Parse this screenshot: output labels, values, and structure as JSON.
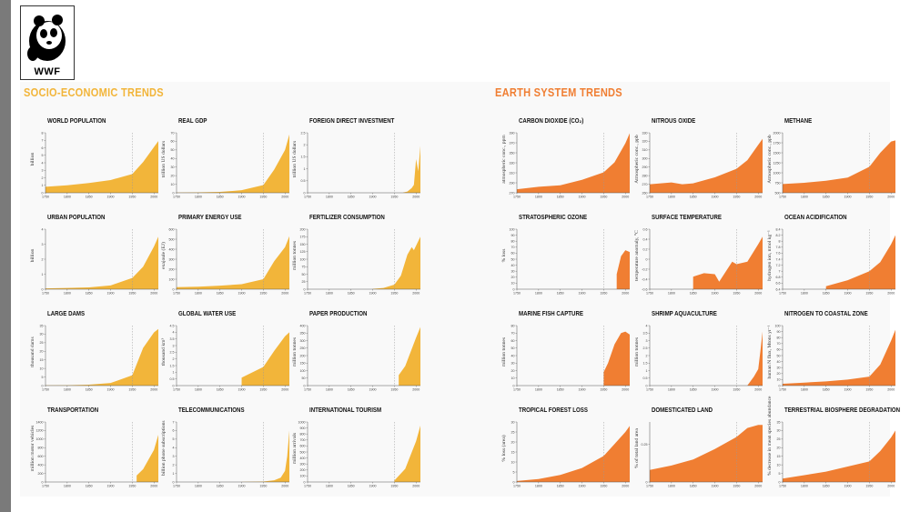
{
  "logo": {
    "text": "WWF"
  },
  "sections": [
    {
      "title": "SOCIO-ECONOMIC TRENDS",
      "color": "#f2b53a"
    },
    {
      "title": "EARTH SYSTEM TRENDS",
      "color": "#f07e32"
    }
  ],
  "chart_data": [
    {
      "type": "area",
      "title": "WORLD POPULATION",
      "ylabel": "billion",
      "ylim": [
        0,
        8
      ],
      "yticks": [
        0,
        1,
        2,
        3,
        4,
        5,
        6,
        7,
        8
      ],
      "xlim": [
        1750,
        2010
      ],
      "xticks": [
        1750,
        1800,
        1850,
        1900,
        1950,
        2000
      ],
      "refline": 1950,
      "x": [
        1750,
        1800,
        1850,
        1900,
        1950,
        1975,
        2000,
        2010
      ],
      "y": [
        0.8,
        1.0,
        1.3,
        1.7,
        2.5,
        4.1,
        6.1,
        6.9
      ]
    },
    {
      "type": "area",
      "title": "REAL GDP",
      "ylabel": "trillion US dollars",
      "ylim": [
        0,
        70
      ],
      "yticks": [
        0,
        10,
        20,
        30,
        40,
        50,
        60,
        70
      ],
      "xlim": [
        1750,
        2010
      ],
      "xticks": [
        1750,
        1800,
        1850,
        1900,
        1950,
        2000
      ],
      "refline": 1950,
      "x": [
        1750,
        1800,
        1850,
        1900,
        1950,
        1975,
        2000,
        2010
      ],
      "y": [
        0.3,
        0.5,
        1,
        3,
        9,
        27,
        50,
        68
      ]
    },
    {
      "type": "area",
      "title": "FOREIGN DIRECT INVESTMENT",
      "ylabel": "trillion US dollars",
      "ylim": [
        0,
        2.5
      ],
      "yticks": [
        0,
        0.5,
        1,
        1.5,
        2,
        2.5
      ],
      "xlim": [
        1750,
        2010
      ],
      "xticks": [
        1750,
        1800,
        1850,
        1900,
        1950,
        2000
      ],
      "refline": 1950,
      "x": [
        1970,
        1980,
        1990,
        1995,
        2000,
        2005,
        2010
      ],
      "y": [
        0.01,
        0.05,
        0.2,
        0.33,
        1.4,
        0.9,
        1.95
      ]
    },
    {
      "type": "area",
      "title": "URBAN POPULATION",
      "ylabel": "billion",
      "ylim": [
        0,
        4
      ],
      "yticks": [
        0,
        1,
        2,
        3,
        4
      ],
      "xlim": [
        1750,
        2010
      ],
      "xticks": [
        1750,
        1800,
        1850,
        1900,
        1950,
        2000
      ],
      "refline": 1950,
      "x": [
        1750,
        1800,
        1850,
        1900,
        1950,
        1975,
        2000,
        2010
      ],
      "y": [
        0.05,
        0.08,
        0.12,
        0.25,
        0.75,
        1.5,
        2.85,
        3.5
      ]
    },
    {
      "type": "area",
      "title": "PRIMARY ENERGY USE",
      "ylabel": "exajoule (EJ)",
      "ylim": [
        0,
        600
      ],
      "yticks": [
        0,
        100,
        200,
        300,
        400,
        500,
        600
      ],
      "xlim": [
        1750,
        2010
      ],
      "xticks": [
        1750,
        1800,
        1850,
        1900,
        1950,
        2000
      ],
      "refline": 1950,
      "x": [
        1750,
        1800,
        1850,
        1900,
        1950,
        1975,
        2000,
        2010
      ],
      "y": [
        20,
        25,
        35,
        50,
        100,
        280,
        420,
        530
      ]
    },
    {
      "type": "area",
      "title": "FERTILIZER CONSUMPTION",
      "ylabel": "million tonnes",
      "ylim": [
        0,
        200
      ],
      "yticks": [
        0,
        25,
        50,
        75,
        100,
        125,
        150,
        175,
        200
      ],
      "xlim": [
        1750,
        2010
      ],
      "xticks": [
        1750,
        1800,
        1850,
        1900,
        1950,
        2000
      ],
      "refline": 1950,
      "x": [
        1900,
        1925,
        1950,
        1965,
        1980,
        1990,
        1995,
        2000,
        2010
      ],
      "y": [
        1,
        4,
        15,
        45,
        115,
        140,
        130,
        145,
        175
      ]
    },
    {
      "type": "area",
      "title": "LARGE DAMS",
      "ylabel": "thousand dams",
      "ylim": [
        0,
        35
      ],
      "yticks": [
        0,
        5,
        10,
        15,
        20,
        25,
        30,
        35
      ],
      "xlim": [
        1750,
        2010
      ],
      "xticks": [
        1750,
        1800,
        1850,
        1900,
        1950,
        2000
      ],
      "refline": 1950,
      "x": [
        1750,
        1800,
        1850,
        1900,
        1950,
        1975,
        2000,
        2010
      ],
      "y": [
        0.1,
        0.2,
        0.5,
        1.5,
        6,
        22,
        31,
        33
      ]
    },
    {
      "type": "area",
      "title": "GLOBAL WATER USE",
      "ylabel": "thousand km³",
      "ylim": [
        0,
        4.5
      ],
      "yticks": [
        0,
        0.5,
        1,
        1.5,
        2,
        2.5,
        3,
        3.5,
        4,
        4.5
      ],
      "xlim": [
        1750,
        2010
      ],
      "xticks": [
        1750,
        1800,
        1850,
        1900,
        1950,
        2000
      ],
      "refline": 1950,
      "x": [
        1900,
        1950,
        1975,
        2000,
        2010
      ],
      "y": [
        0.6,
        1.4,
        2.6,
        3.7,
        4.0
      ]
    },
    {
      "type": "area",
      "title": "PAPER PRODUCTION",
      "ylabel": "million tonnes",
      "ylim": [
        0,
        400
      ],
      "yticks": [
        0,
        50,
        100,
        150,
        200,
        250,
        300,
        350,
        400
      ],
      "xlim": [
        1750,
        2010
      ],
      "xticks": [
        1750,
        1800,
        1850,
        1900,
        1950,
        2000
      ],
      "refline": 1950,
      "x": [
        1960,
        1975,
        2000,
        2010
      ],
      "y": [
        70,
        130,
        320,
        390
      ]
    },
    {
      "type": "area",
      "title": "TRANSPORTATION",
      "ylabel": "million motor vehicles",
      "ylim": [
        0,
        1400
      ],
      "yticks": [
        0,
        200,
        400,
        600,
        800,
        1000,
        1200,
        1400
      ],
      "xlim": [
        1750,
        2010
      ],
      "xticks": [
        1750,
        1800,
        1850,
        1900,
        1950,
        2000
      ],
      "refline": 1950,
      "x": [
        1960,
        1975,
        2000,
        2010
      ],
      "y": [
        150,
        300,
        750,
        1100
      ]
    },
    {
      "type": "area",
      "title": "TELECOMMUNICATIONS",
      "ylabel": "billion phone subscriptions",
      "ylim": [
        0,
        7
      ],
      "yticks": [
        0,
        1,
        2,
        3,
        4,
        5,
        6,
        7
      ],
      "xlim": [
        1750,
        2010
      ],
      "xticks": [
        1750,
        1800,
        1850,
        1900,
        1950,
        2000
      ],
      "refline": 1950,
      "x": [
        1900,
        1950,
        1975,
        1990,
        2000,
        2005,
        2010
      ],
      "y": [
        0.01,
        0.05,
        0.2,
        0.5,
        1.3,
        3,
        6
      ]
    },
    {
      "type": "area",
      "title": "INTERNATIONAL TOURISM",
      "ylabel": "million arrivals",
      "ylim": [
        0,
        1000
      ],
      "yticks": [
        0,
        100,
        200,
        300,
        400,
        500,
        600,
        700,
        800,
        900,
        1000
      ],
      "xlim": [
        1750,
        2010
      ],
      "xticks": [
        1750,
        1800,
        1850,
        1900,
        1950,
        2000
      ],
      "refline": 1950,
      "x": [
        1950,
        1975,
        2000,
        2010
      ],
      "y": [
        25,
        220,
        680,
        940
      ]
    },
    {
      "type": "area",
      "title": "CARBON DIOXIDE (CO₂)",
      "ylabel": "atmospheric conc., ppm",
      "ylim": [
        270,
        390
      ],
      "yticks": [
        270,
        290,
        310,
        330,
        350,
        370,
        390
      ],
      "xlim": [
        1750,
        2010
      ],
      "xticks": [
        1750,
        1800,
        1850,
        1900,
        1950,
        2000
      ],
      "refline": 1950,
      "x": [
        1750,
        1800,
        1850,
        1900,
        1950,
        1975,
        2000,
        2010
      ],
      "y": [
        277,
        282,
        285,
        296,
        311,
        331,
        369,
        389
      ]
    },
    {
      "type": "area",
      "title": "NITROUS OXIDE",
      "ylabel": "Atmospheric conc., ppb",
      "ylim": [
        260,
        330
      ],
      "yticks": [
        260,
        270,
        280,
        290,
        300,
        310,
        320,
        330
      ],
      "xlim": [
        1750,
        2010
      ],
      "xticks": [
        1750,
        1800,
        1850,
        1900,
        1950,
        2000
      ],
      "refline": 1950,
      "x": [
        1750,
        1800,
        1825,
        1850,
        1900,
        1950,
        1975,
        2000,
        2010
      ],
      "y": [
        270,
        272,
        270,
        271,
        278,
        288,
        298,
        316,
        323
      ]
    },
    {
      "type": "area",
      "title": "METHANE",
      "ylabel": "Atmospheric conc., ppb",
      "ylim": [
        500,
        2000
      ],
      "yticks": [
        500,
        750,
        1000,
        1250,
        1500,
        1750,
        2000
      ],
      "xlim": [
        1750,
        2010
      ],
      "xticks": [
        1750,
        1800,
        1850,
        1900,
        1950,
        2000
      ],
      "refline": 1950,
      "x": [
        1750,
        1800,
        1850,
        1900,
        1950,
        1975,
        2000,
        2010
      ],
      "y": [
        720,
        750,
        800,
        880,
        1150,
        1500,
        1780,
        1810
      ]
    },
    {
      "type": "area",
      "title": "STRATOSPHERIC OZONE",
      "ylabel": "% loss",
      "ylim": [
        0,
        100
      ],
      "yticks": [
        0,
        10,
        20,
        30,
        40,
        50,
        60,
        70,
        80,
        90,
        100
      ],
      "xlim": [
        1750,
        2010
      ],
      "xticks": [
        1750,
        1800,
        1850,
        1900,
        1950,
        2000
      ],
      "refline": 1950,
      "x": [
        1980,
        1990,
        2000,
        2010
      ],
      "y": [
        25,
        55,
        65,
        62
      ]
    },
    {
      "type": "area",
      "title": "SURFACE TEMPERATURE",
      "ylabel": "temperature anomaly, °C",
      "ylim": [
        -0.6,
        0.6
      ],
      "yticks": [
        -0.6,
        -0.4,
        -0.2,
        0,
        0.2,
        0.4,
        0.6
      ],
      "xlim": [
        1750,
        2010
      ],
      "xticks": [
        1750,
        1800,
        1850,
        1900,
        1950,
        2000
      ],
      "refline": 1950,
      "baseline": -0.6,
      "x": [
        1850,
        1875,
        1900,
        1910,
        1925,
        1940,
        1950,
        1975,
        2000,
        2010
      ],
      "y": [
        -0.35,
        -0.28,
        -0.3,
        -0.45,
        -0.25,
        -0.05,
        -0.1,
        -0.05,
        0.3,
        0.45
      ]
    },
    {
      "type": "area",
      "title": "OCEAN ACIDIFICATION",
      "ylabel": "hydrogen ion, nmol kg⁻¹",
      "ylim": [
        6.4,
        8.4
      ],
      "yticks": [
        6.4,
        6.6,
        6.8,
        7.0,
        7.2,
        7.4,
        7.6,
        7.8,
        8.0,
        8.2,
        8.4
      ],
      "xlim": [
        1750,
        2010
      ],
      "xticks": [
        1750,
        1800,
        1850,
        1900,
        1950,
        2000
      ],
      "refline": 1950,
      "baseline": 6.4,
      "x": [
        1850,
        1900,
        1950,
        1975,
        2000,
        2010
      ],
      "y": [
        6.5,
        6.7,
        7.0,
        7.3,
        7.9,
        8.2
      ]
    },
    {
      "type": "area",
      "title": "MARINE FISH CAPTURE",
      "ylabel": "million tonnes",
      "ylim": [
        0,
        80
      ],
      "yticks": [
        0,
        10,
        20,
        30,
        40,
        50,
        60,
        70,
        80
      ],
      "xlim": [
        1750,
        2010
      ],
      "xticks": [
        1750,
        1800,
        1850,
        1900,
        1950,
        2000
      ],
      "refline": 1950,
      "x": [
        1950,
        1960,
        1975,
        1990,
        2000,
        2010
      ],
      "y": [
        18,
        30,
        55,
        70,
        72,
        68
      ]
    },
    {
      "type": "area",
      "title": "SHRIMP AQUACULTURE",
      "ylabel": "million tonnes",
      "ylim": [
        0,
        4
      ],
      "yticks": [
        0,
        0.5,
        1,
        1.5,
        2,
        2.5,
        3,
        3.5,
        4
      ],
      "xlim": [
        1750,
        2010
      ],
      "xticks": [
        1750,
        1800,
        1850,
        1900,
        1950,
        2000
      ],
      "refline": 1950,
      "x": [
        1975,
        1990,
        2000,
        2005,
        2010
      ],
      "y": [
        0.01,
        0.6,
        1.1,
        2.3,
        3.6
      ]
    },
    {
      "type": "area",
      "title": "NITROGEN TO COASTAL ZONE",
      "ylabel": "human N flux, Mtons yr⁻¹",
      "ylim": [
        0,
        100
      ],
      "yticks": [
        0,
        10,
        20,
        30,
        40,
        50,
        60,
        70,
        80,
        90,
        100
      ],
      "xlim": [
        1750,
        2010
      ],
      "xticks": [
        1750,
        1800,
        1850,
        1900,
        1950,
        2000
      ],
      "refline": 1950,
      "x": [
        1750,
        1800,
        1850,
        1900,
        1950,
        1975,
        2000,
        2010
      ],
      "y": [
        3,
        5,
        7,
        10,
        15,
        35,
        75,
        93
      ]
    },
    {
      "type": "area",
      "title": "TROPICAL FOREST LOSS",
      "ylabel": "% loss (area)",
      "ylim": [
        0,
        30
      ],
      "yticks": [
        0,
        5,
        10,
        15,
        20,
        25,
        30
      ],
      "xlim": [
        1750,
        2010
      ],
      "xticks": [
        1750,
        1800,
        1850,
        1900,
        1950,
        2000
      ],
      "refline": 1950,
      "x": [
        1750,
        1800,
        1850,
        1900,
        1950,
        1975,
        2000,
        2010
      ],
      "y": [
        0.5,
        1.5,
        3.5,
        7,
        13,
        19,
        25,
        28
      ]
    },
    {
      "type": "area",
      "title": "DOMESTICATED LAND",
      "ylabel": "% of total land area",
      "ylim": [
        0,
        0.4
      ],
      "yticks": [
        0,
        0.25
      ],
      "xlim": [
        1750,
        2010
      ],
      "xticks": [
        1750,
        1800,
        1850,
        1900,
        1950,
        2000
      ],
      "refline": 1950,
      "x": [
        1750,
        1800,
        1850,
        1900,
        1950,
        1975,
        2000,
        2010
      ],
      "y": [
        0.08,
        0.11,
        0.15,
        0.22,
        0.3,
        0.36,
        0.38,
        0.38
      ]
    },
    {
      "type": "area",
      "title": "TERRESTRIAL BIOSPHERE DEGRADATION",
      "ylabel": "% decrease in mean species abundance",
      "ylim": [
        0,
        35
      ],
      "yticks": [
        0,
        5,
        10,
        15,
        20,
        25,
        30,
        35
      ],
      "xlim": [
        1750,
        2010
      ],
      "xticks": [
        1750,
        1800,
        1850,
        1900,
        1950,
        2000
      ],
      "refline": 1950,
      "x": [
        1750,
        1800,
        1850,
        1900,
        1950,
        1975,
        2000,
        2010
      ],
      "y": [
        2,
        4,
        6,
        9,
        12,
        18,
        26,
        30
      ]
    }
  ]
}
